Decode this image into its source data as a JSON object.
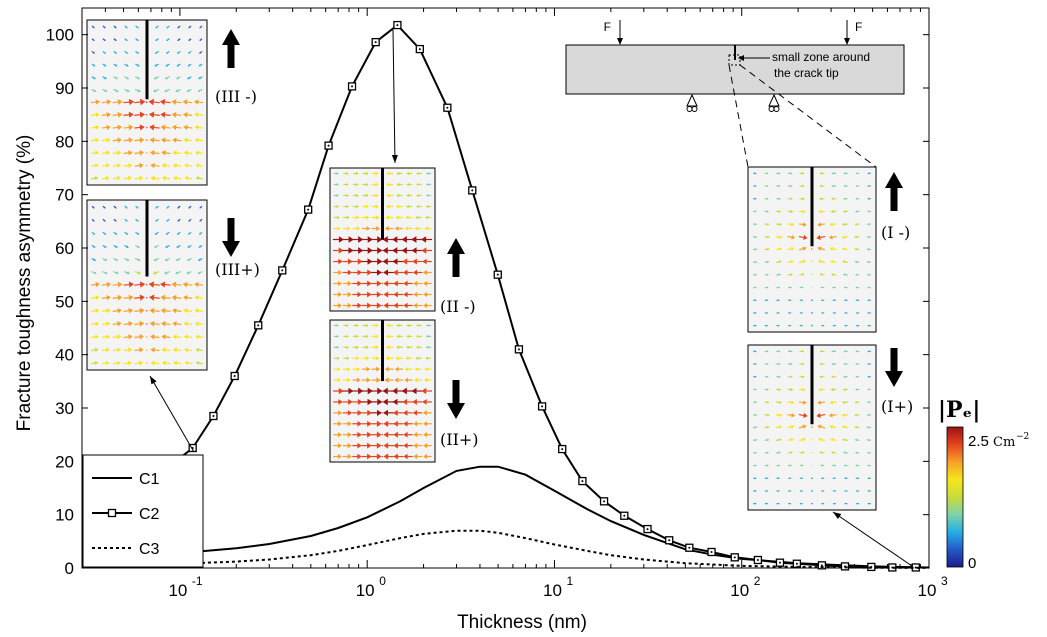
{
  "chart_data": {
    "type": "line",
    "xlabel": "Thickness (nm)",
    "ylabel": "Fracture toughness asymmetry (%)",
    "xscale": "log",
    "xlim": [
      0.03,
      1000
    ],
    "ylim": [
      0,
      105
    ],
    "x_ticks": [
      {
        "value": 0.1,
        "base": "10",
        "exp": "-1"
      },
      {
        "value": 1,
        "base": "10",
        "exp": "0"
      },
      {
        "value": 10,
        "base": "10",
        "exp": "1"
      },
      {
        "value": 100,
        "base": "10",
        "exp": "2"
      },
      {
        "value": 1000,
        "base": "10",
        "exp": "3"
      }
    ],
    "y_ticks": [
      "0",
      "10",
      "20",
      "30",
      "40",
      "50",
      "60",
      "70",
      "80",
      "90",
      "100"
    ],
    "legend_position": "bottom-left",
    "series": [
      {
        "name": "C1",
        "style": "solid",
        "x": [
          0.03,
          0.05,
          0.1,
          0.2,
          0.3,
          0.5,
          0.7,
          1.0,
          1.5,
          2.0,
          3.0,
          4.0,
          5.0,
          7.0,
          10,
          15,
          20,
          30,
          50,
          70,
          100,
          200,
          300,
          500,
          1000
        ],
        "y": [
          1.7,
          2.2,
          2.8,
          3.7,
          4.5,
          6.0,
          7.5,
          9.5,
          12.5,
          15.0,
          18.2,
          19.0,
          19.0,
          17.5,
          14.5,
          11.0,
          8.8,
          6.2,
          3.5,
          2.5,
          1.7,
          0.9,
          0.6,
          0.3,
          0.1
        ]
      },
      {
        "name": "C2",
        "style": "solid-square-markers",
        "x": [
          0.095,
          0.117,
          0.151,
          0.196,
          0.262,
          0.352,
          0.484,
          0.622,
          0.83,
          1.11,
          1.45,
          1.91,
          2.68,
          3.64,
          4.98,
          6.46,
          8.59,
          11.0,
          14.1,
          18.4,
          23.6,
          31.4,
          41.0,
          52.5,
          69.0,
          91.8,
          122,
          160,
          197,
          268,
          356,
          492,
          637,
          850
        ],
        "y": [
          20.0,
          22.5,
          28.5,
          36.0,
          45.5,
          55.8,
          67.2,
          79.2,
          90.3,
          98.6,
          101.8,
          97.3,
          86.3,
          70.8,
          55.0,
          41.0,
          30.3,
          22.3,
          16.3,
          12.5,
          9.8,
          7.3,
          5.2,
          3.8,
          3.0,
          2.0,
          1.5,
          1.0,
          0.8,
          0.5,
          0.3,
          0.2,
          0.1,
          0.1
        ]
      },
      {
        "name": "C3",
        "style": "dotted",
        "x": [
          0.03,
          0.05,
          0.1,
          0.2,
          0.3,
          0.5,
          0.7,
          1.0,
          1.5,
          2.0,
          3.0,
          4.0,
          5.0,
          7.0,
          10,
          15,
          20,
          30,
          50,
          100,
          200,
          500,
          1000
        ],
        "y": [
          0.3,
          0.5,
          0.8,
          1.2,
          1.6,
          2.4,
          3.2,
          4.3,
          5.6,
          6.4,
          7.0,
          7.0,
          6.6,
          5.6,
          4.4,
          3.2,
          2.4,
          1.6,
          0.9,
          0.4,
          0.2,
          0.05,
          0.02
        ]
      }
    ],
    "insets": {
      "beam": {
        "load_label": "F",
        "zone_label_line1": "small zone around",
        "zone_label_line2": "the crack tip"
      },
      "field_labels": {
        "III_minus": "(III -)",
        "III_plus": "(III+)",
        "II_minus": "(II -)",
        "II_plus": "(II+)",
        "I_minus": "(I -)",
        "I_plus": "(I+)"
      }
    },
    "colorbar": {
      "title": "|Pₑ|",
      "max_label": "2.5",
      "unit_base": "Cm",
      "unit_exp": "−2",
      "min_label": "0",
      "colors": [
        "#1d1d8a",
        "#2259c9",
        "#26aee6",
        "#7fd3a8",
        "#c7dc3c",
        "#f7e51b",
        "#f7a02a",
        "#e4441e",
        "#9a1414"
      ]
    }
  }
}
